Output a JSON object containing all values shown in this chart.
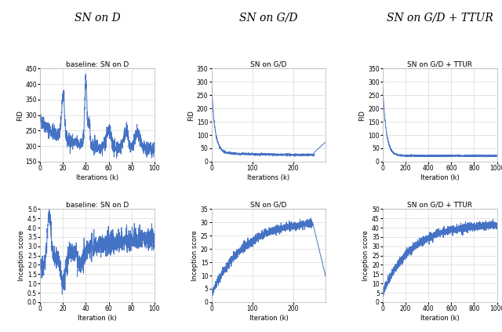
{
  "col_headers": [
    "SN on D",
    "SN on G/D",
    "SN on G/D + TTUR"
  ],
  "line_color": "#4472c4",
  "line_width": 0.7,
  "background_color": "#ffffff",
  "grid_color": "#d9d9d9",
  "subplot_titles": [
    [
      "baseline: SN on D",
      "SN on G/D",
      "SN on G/D + TTUR"
    ],
    [
      "baseline: SN on D",
      "SN on G/D",
      "SN on G/D + TTUR"
    ]
  ],
  "row0_ylabels": [
    "FID",
    "FID",
    "FID"
  ],
  "row1_ylabels": [
    "Inception score",
    "Inception score",
    "Inception score"
  ],
  "row0_xlabels": [
    "Iterations (k)",
    "Iterations (k)",
    "Iteration (k)"
  ],
  "row1_xlabels": [
    "Iteration (k)",
    "Iteration (k)",
    "Iteration (k)"
  ],
  "subplot_00": {
    "xlim": [
      0,
      100
    ],
    "ylim": [
      150,
      450
    ],
    "xticks": [
      0,
      20,
      40,
      60,
      80,
      100
    ],
    "yticks": [
      150,
      200,
      250,
      300,
      350,
      400,
      450
    ]
  },
  "subplot_01": {
    "xlim": [
      0,
      280
    ],
    "ylim": [
      0,
      350
    ],
    "xticks": [
      0,
      100,
      200
    ],
    "yticks": [
      0,
      50,
      100,
      150,
      200,
      250,
      300,
      350
    ]
  },
  "subplot_02": {
    "xlim": [
      0,
      1000
    ],
    "ylim": [
      0,
      350
    ],
    "xticks": [
      0,
      200,
      400,
      600,
      800,
      1000
    ],
    "yticks": [
      0,
      50,
      100,
      150,
      200,
      250,
      300,
      350
    ]
  },
  "subplot_10": {
    "xlim": [
      0,
      100
    ],
    "ylim": [
      0,
      5
    ],
    "xticks": [
      0,
      20,
      40,
      60,
      80,
      100
    ],
    "yticks": [
      0,
      0.5,
      1,
      1.5,
      2,
      2.5,
      3,
      3.5,
      4,
      4.5,
      5
    ]
  },
  "subplot_11": {
    "xlim": [
      0,
      280
    ],
    "ylim": [
      0,
      35
    ],
    "xticks": [
      0,
      100,
      200
    ],
    "yticks": [
      0,
      5,
      10,
      15,
      20,
      25,
      30,
      35
    ]
  },
  "subplot_12": {
    "xlim": [
      0,
      1000
    ],
    "ylim": [
      0,
      50
    ],
    "xticks": [
      0,
      200,
      400,
      600,
      800,
      1000
    ],
    "yticks": [
      0,
      5,
      10,
      15,
      20,
      25,
      30,
      35,
      40,
      45,
      50
    ]
  }
}
